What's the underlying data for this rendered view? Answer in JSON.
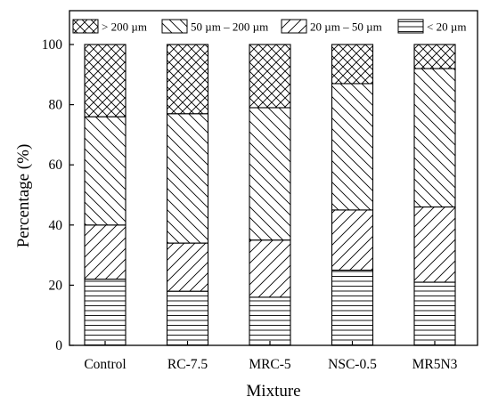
{
  "chart_data": {
    "type": "bar",
    "stacked": true,
    "title": "",
    "xlabel": "Mixture",
    "ylabel": "Percentage (%)",
    "ylim": [
      0,
      100
    ],
    "yticks": [
      0,
      20,
      40,
      60,
      80,
      100
    ],
    "categories": [
      "Control",
      "RC-7.5",
      "MRC-5",
      "NSC-0.5",
      "MR5N3"
    ],
    "series": [
      {
        "name": "< 20 µm",
        "pattern": "horizontal-lines",
        "values": [
          22,
          18,
          16,
          25,
          21
        ]
      },
      {
        "name": "20 µm – 50 µm",
        "pattern": "forward-diagonal",
        "values": [
          18,
          16,
          19,
          20,
          25
        ]
      },
      {
        "name": "50 µm – 200 µm",
        "pattern": "back-diagonal",
        "values": [
          36,
          43,
          44,
          42,
          46
        ]
      },
      {
        "name": "> 200 µm",
        "pattern": "crosshatch",
        "values": [
          24,
          23,
          21,
          13,
          8
        ]
      }
    ],
    "legend_order": [
      "> 200 µm",
      "50 µm – 200 µm",
      "20 µm – 50 µm",
      "< 20 µm"
    ],
    "legend_position": "top",
    "grid": false
  }
}
